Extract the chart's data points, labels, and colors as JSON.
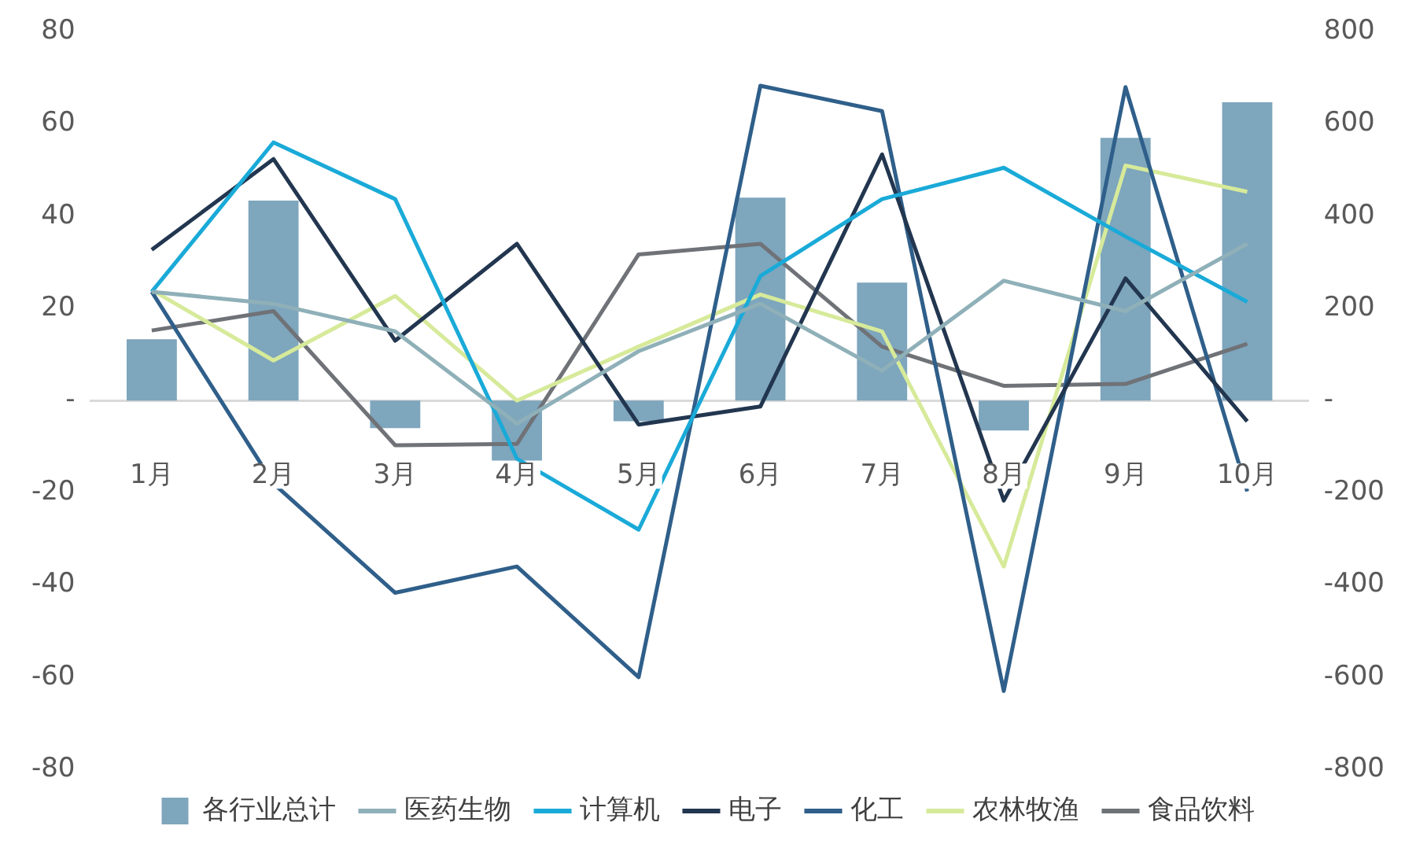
{
  "chart_data": {
    "type": "line",
    "categories": [
      "1月",
      "2月",
      "3月",
      "4月",
      "5月",
      "6月",
      "7月",
      "8月",
      "9月",
      "10月"
    ],
    "series": [
      {
        "name": "各行业总计",
        "type": "bar",
        "axis": "y2",
        "color": "#7ea6bd",
        "values": [
          133,
          434,
          -60,
          -130,
          -45,
          440,
          256,
          -65,
          570,
          647
        ]
      },
      {
        "name": "医药生物",
        "color": "#8fb0b8",
        "values": [
          23.6,
          21,
          15,
          -5,
          10.7,
          21,
          6.5,
          26,
          19.4,
          34
        ]
      },
      {
        "name": "计算机",
        "color": "#1aaad8",
        "values": [
          23.6,
          56,
          43.7,
          -12.6,
          -28,
          27,
          43.7,
          50.5,
          35.6,
          21.4
        ]
      },
      {
        "name": "电子",
        "color": "#22364f",
        "values": [
          32.7,
          52.4,
          13,
          34,
          -5.2,
          -1.3,
          53.4,
          -21.7,
          26.5,
          -4.5
        ]
      },
      {
        "name": "化工",
        "color": "#2f5f8a",
        "values": [
          23.6,
          -18,
          -41.7,
          -36,
          -60,
          68.3,
          62.8,
          -63,
          68,
          -19.7
        ]
      },
      {
        "name": "农林牧渔",
        "color": "#d6ea9a",
        "values": [
          24,
          8.7,
          22.7,
          0,
          11.7,
          23,
          15,
          -36,
          51,
          45.3
        ]
      },
      {
        "name": "食品饮料",
        "color": "#6f7277",
        "values": [
          15.2,
          19.4,
          -9.7,
          -9.4,
          31.7,
          34,
          11.7,
          3.2,
          3.6,
          12.3
        ]
      }
    ],
    "ylim": [
      -80,
      80
    ],
    "yticks": [
      -80,
      -60,
      -40,
      -20,
      {
        "value": 0,
        "label": "-"
      },
      20,
      40,
      60,
      80
    ],
    "y2lim": [
      -800,
      800
    ],
    "y2ticks": [
      -800,
      -600,
      -400,
      -200,
      {
        "value": 0,
        "label": "-"
      },
      200,
      400,
      600,
      800
    ],
    "grid": false,
    "legend": "bottom",
    "marker": "none",
    "line_style": "solid"
  }
}
